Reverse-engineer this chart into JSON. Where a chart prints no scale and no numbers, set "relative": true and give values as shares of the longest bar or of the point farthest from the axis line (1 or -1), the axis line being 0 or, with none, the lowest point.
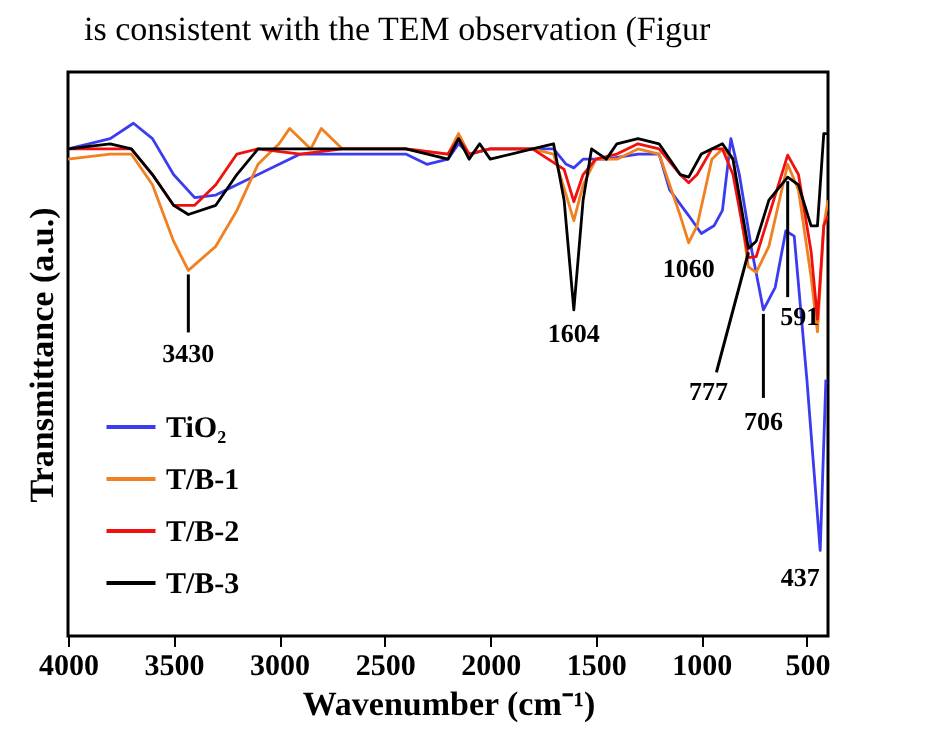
{
  "chart_data": {
    "type": "line",
    "relative": true,
    "xlabel": "Wavenumber (cm⁻¹)",
    "ylabel": "Transmittance (a.u.)",
    "xlim": [
      4000,
      400
    ],
    "xticks": [
      4000,
      3500,
      3000,
      2500,
      2000,
      1500,
      1000,
      500
    ],
    "grid": false,
    "legend": "bottom left",
    "marker": "none",
    "line_style": "solid",
    "annotations": [
      "is consistent with the TEM observation (Figur",
      {
        "text": "3430",
        "x": 3430,
        "y": 0.713
      },
      {
        "text": "1604",
        "x": 1604,
        "y": 0.636
      },
      {
        "text": "1060",
        "x": 1060,
        "y": 0.767
      },
      {
        "text": "777",
        "x": 777,
        "y": 0.756
      },
      {
        "text": "706",
        "x": 706,
        "y": 0.636
      },
      {
        "text": "591",
        "x": 591,
        "y": 0.895
      },
      {
        "text": "437",
        "x": 437,
        "y": 0.167
      }
    ],
    "series": [
      {
        "name": "TiO₂",
        "color": "#3b3bf0",
        "x": [
          4000,
          3800,
          3690,
          3600,
          3500,
          3400,
          3300,
          3200,
          3000,
          2900,
          2700,
          2400,
          2300,
          2200,
          2150,
          2100,
          2000,
          1900,
          1700,
          1640,
          1604,
          1560,
          1450,
          1300,
          1200,
          1150,
          1060,
          1000,
          940,
          900,
          860,
          820,
          760,
          706,
          650,
          600,
          560,
          500,
          437,
          410
        ],
        "values": [
          0.95,
          0.97,
          1.0,
          0.97,
          0.9,
          0.855,
          0.86,
          0.88,
          0.92,
          0.94,
          0.94,
          0.94,
          0.92,
          0.93,
          0.96,
          0.94,
          0.95,
          0.95,
          0.95,
          0.92,
          0.913,
          0.93,
          0.93,
          0.94,
          0.94,
          0.87,
          0.82,
          0.785,
          0.8,
          0.83,
          0.97,
          0.9,
          0.75,
          0.636,
          0.68,
          0.79,
          0.78,
          0.5,
          0.167,
          0.5
        ]
      },
      {
        "name": "T/B-1",
        "color": "#f08020",
        "x": [
          4000,
          3800,
          3700,
          3600,
          3500,
          3430,
          3300,
          3200,
          3100,
          3000,
          2950,
          2850,
          2800,
          2700,
          2400,
          2200,
          2150,
          2100,
          2000,
          1800,
          1700,
          1640,
          1604,
          1560,
          1500,
          1400,
          1300,
          1200,
          1100,
          1060,
          1020,
          950,
          900,
          850,
          777,
          740,
          680,
          591,
          540,
          480,
          450,
          420,
          400
        ],
        "values": [
          0.93,
          0.94,
          0.94,
          0.88,
          0.77,
          0.713,
          0.76,
          0.83,
          0.92,
          0.96,
          0.99,
          0.95,
          0.99,
          0.95,
          0.95,
          0.94,
          0.98,
          0.94,
          0.95,
          0.95,
          0.94,
          0.86,
          0.81,
          0.88,
          0.93,
          0.93,
          0.95,
          0.94,
          0.82,
          0.767,
          0.8,
          0.93,
          0.95,
          0.93,
          0.72,
          0.709,
          0.76,
          0.92,
          0.87,
          0.7,
          0.593,
          0.8,
          0.85
        ]
      },
      {
        "name": "T/B-2",
        "color": "#f01010",
        "x": [
          4000,
          3800,
          3700,
          3600,
          3500,
          3400,
          3300,
          3200,
          3100,
          2900,
          2700,
          2400,
          2200,
          2150,
          2100,
          2000,
          1800,
          1650,
          1604,
          1560,
          1500,
          1400,
          1300,
          1200,
          1100,
          1060,
          1020,
          950,
          900,
          850,
          777,
          740,
          680,
          591,
          540,
          480,
          450,
          420,
          400
        ],
        "values": [
          0.95,
          0.95,
          0.95,
          0.9,
          0.84,
          0.84,
          0.88,
          0.94,
          0.95,
          0.94,
          0.95,
          0.95,
          0.94,
          0.97,
          0.94,
          0.95,
          0.95,
          0.91,
          0.847,
          0.9,
          0.93,
          0.94,
          0.96,
          0.95,
          0.9,
          0.884,
          0.9,
          0.95,
          0.95,
          0.9,
          0.738,
          0.74,
          0.82,
          0.938,
          0.9,
          0.75,
          0.618,
          0.8,
          0.82
        ]
      },
      {
        "name": "T/B-3",
        "color": "#000000",
        "x": [
          4000,
          3800,
          3700,
          3600,
          3500,
          3430,
          3300,
          3200,
          3100,
          3000,
          2900,
          2700,
          2400,
          2200,
          2150,
          2100,
          2050,
          2000,
          1800,
          1700,
          1650,
          1604,
          1560,
          1520,
          1450,
          1400,
          1300,
          1200,
          1100,
          1060,
          1000,
          900,
          850,
          777,
          740,
          680,
          591,
          540,
          480,
          450,
          420,
          400
        ],
        "values": [
          0.95,
          0.96,
          0.95,
          0.9,
          0.84,
          0.822,
          0.84,
          0.9,
          0.95,
          0.95,
          0.95,
          0.95,
          0.95,
          0.93,
          0.97,
          0.93,
          0.96,
          0.93,
          0.95,
          0.96,
          0.85,
          0.636,
          0.85,
          0.95,
          0.93,
          0.96,
          0.97,
          0.96,
          0.9,
          0.895,
          0.94,
          0.96,
          0.93,
          0.756,
          0.77,
          0.85,
          0.895,
          0.88,
          0.8,
          0.8,
          0.98,
          0.98
        ]
      }
    ]
  }
}
